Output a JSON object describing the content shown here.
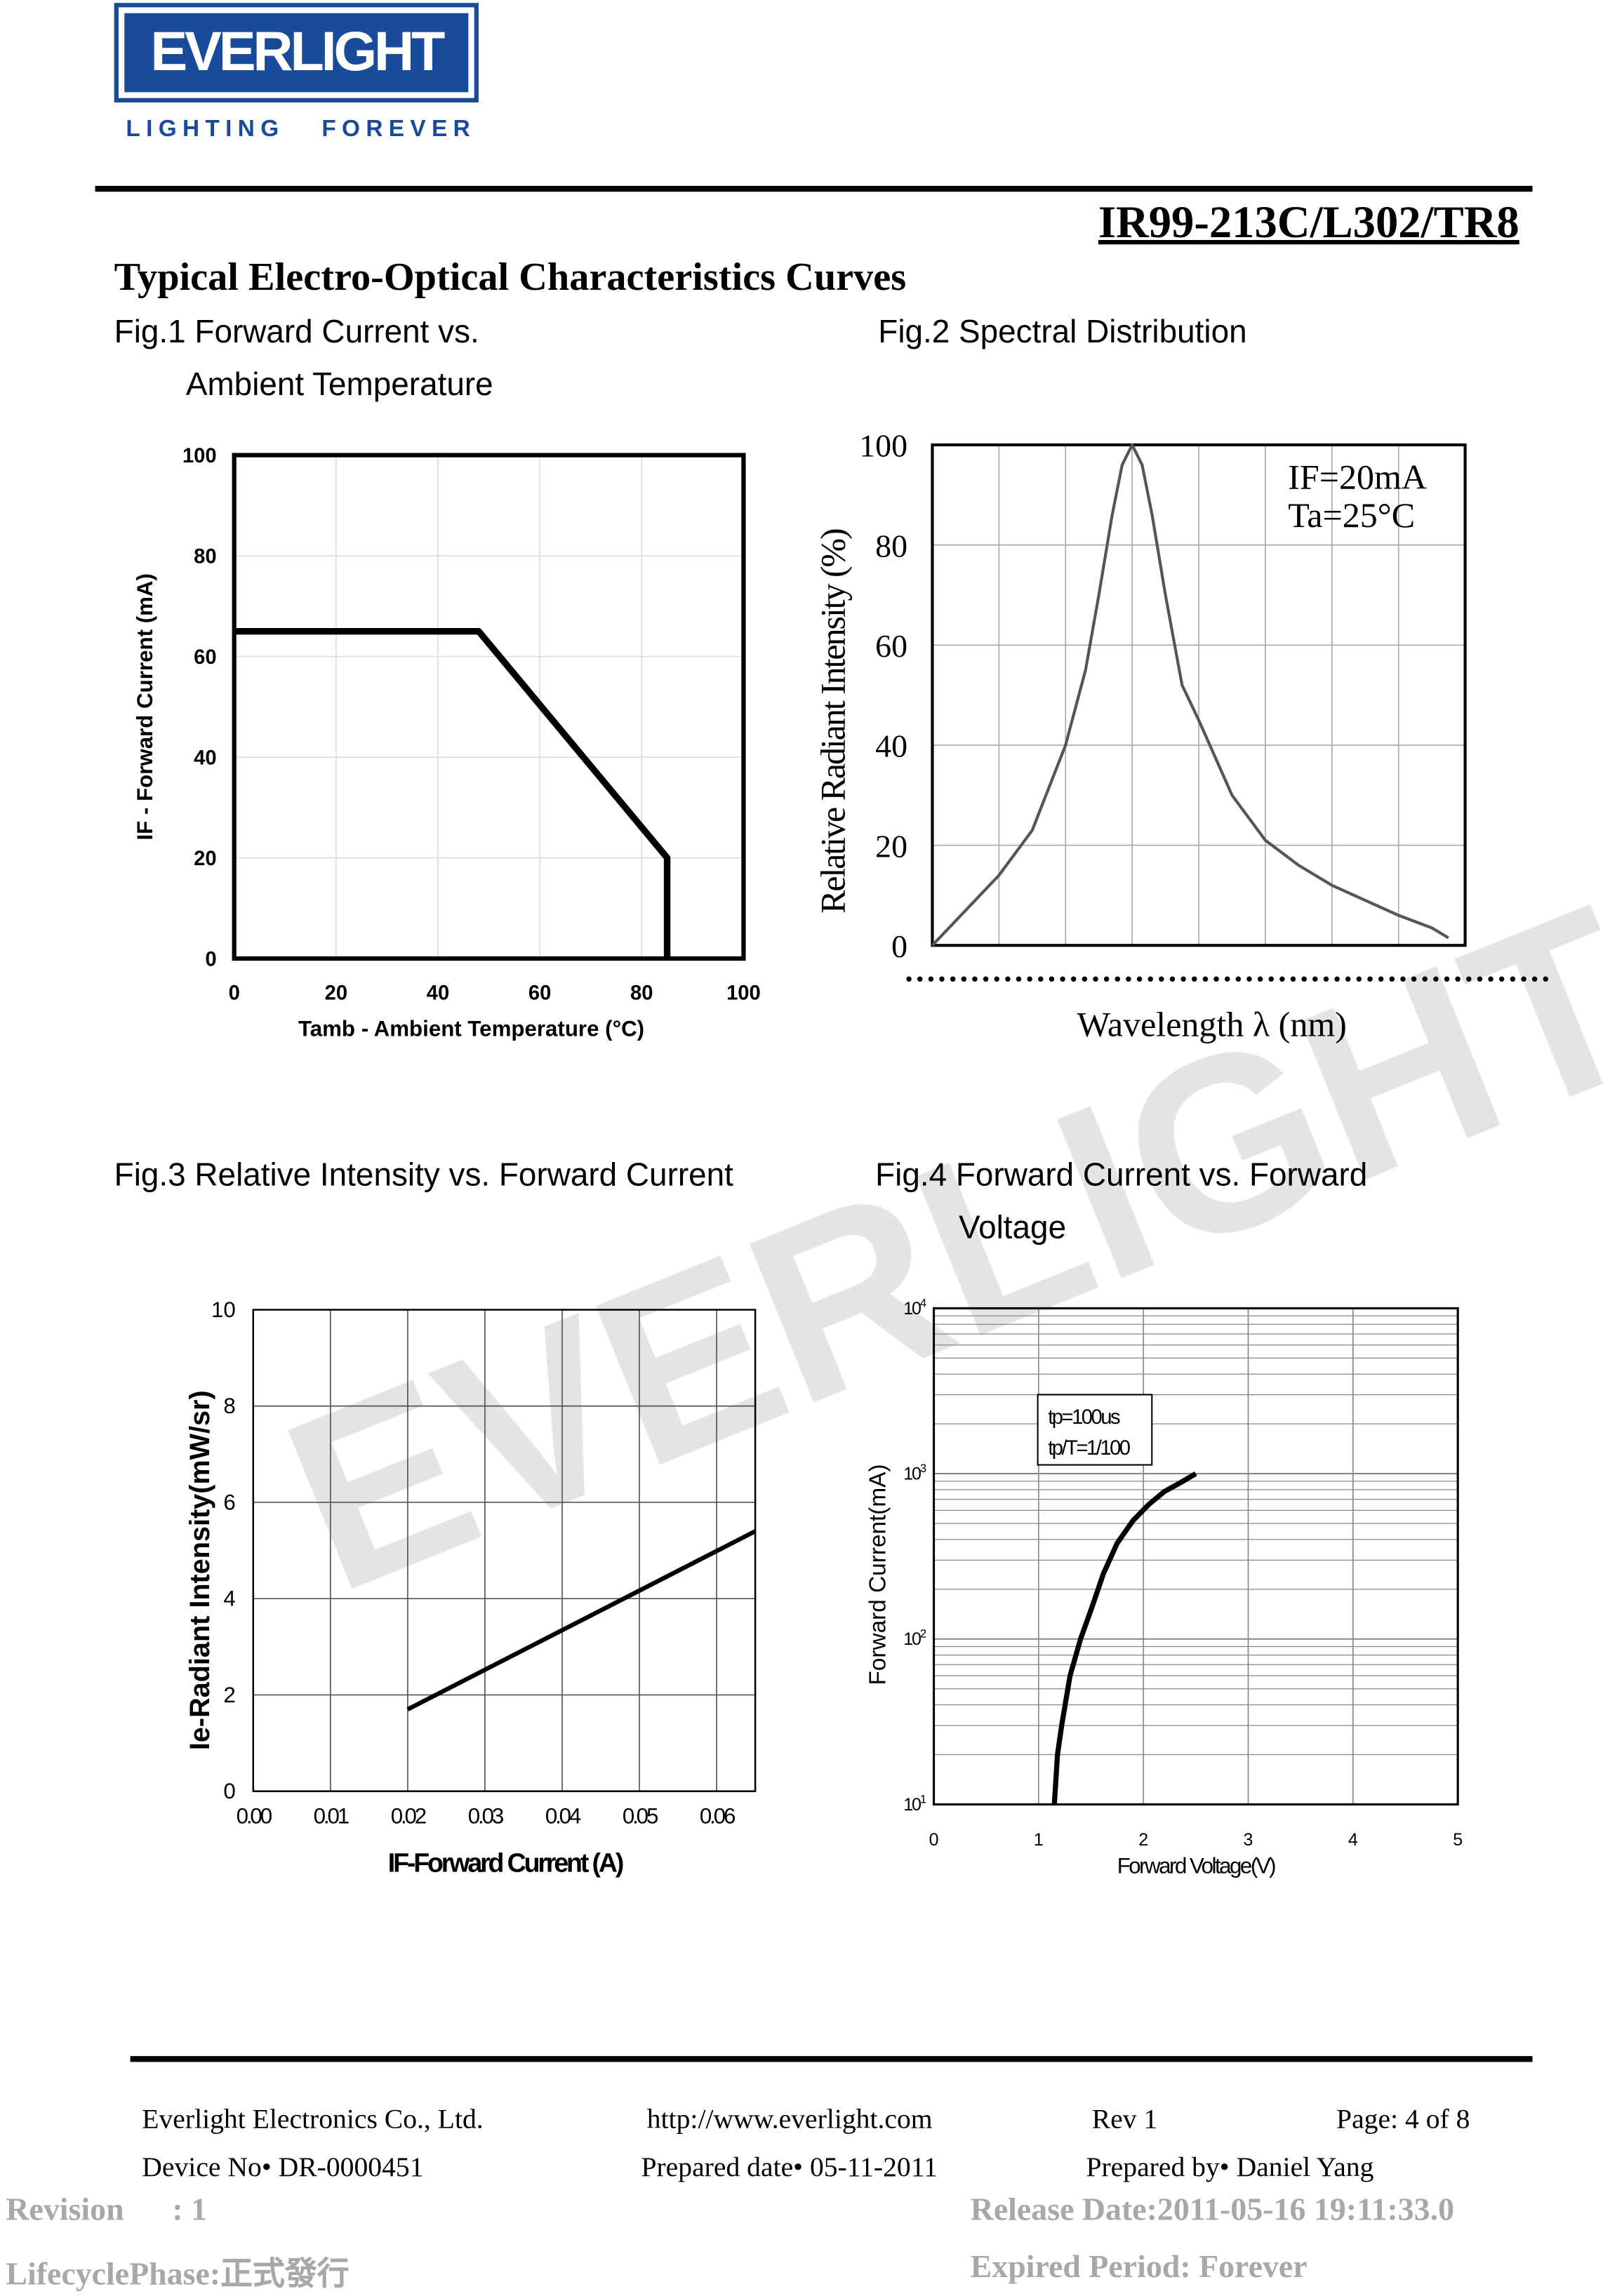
{
  "header": {
    "logo_text": "EVERLIGHT",
    "logo_tagline": "LIGHTING   FOREVER",
    "part_number": "IR99-213C/L302/TR8",
    "section_title": "Typical Electro-Optical Characteristics Curves"
  },
  "watermark": "EVERLIGHT",
  "figures": {
    "fig1_title_line1": "Fig.1 Forward Current vs.",
    "fig1_title_line2": "Ambient Temperature",
    "fig2_title": "Fig.2 Spectral Distribution",
    "fig3_title": "Fig.3 Relative Intensity vs. Forward Current",
    "fig4_title_line1": "Fig.4 Forward Current vs. Forward",
    "fig4_title_line2": "Voltage"
  },
  "chart_data": [
    {
      "id": "fig1",
      "type": "line",
      "title": "Forward Current vs. Ambient Temperature",
      "xlabel": "Tamb - Ambient Temperature (°C)",
      "ylabel": "IF - Forward Current (mA)",
      "xlim": [
        0,
        100
      ],
      "ylim": [
        0,
        100
      ],
      "xticks": [
        "0",
        "20",
        "40",
        "60",
        "80",
        "100"
      ],
      "yticks": [
        "0",
        "20",
        "40",
        "60",
        "80",
        "100"
      ],
      "grid": true,
      "series": [
        {
          "name": "IF max",
          "x": [
            0,
            48,
            85,
            85
          ],
          "y": [
            65,
            65,
            20,
            0
          ]
        }
      ]
    },
    {
      "id": "fig2",
      "type": "line",
      "title": "Spectral Distribution",
      "xlabel": "Wavelength λ (nm)",
      "ylabel": "Relative Radiant Intensity (%)",
      "xlim": [
        0,
        8
      ],
      "ylim": [
        0,
        100
      ],
      "xticks": [],
      "yticks": [
        "0",
        "20",
        "40",
        "60",
        "80",
        "100"
      ],
      "grid": true,
      "annotations": [
        "IF=20mA",
        "Ta=25°C"
      ],
      "series": [
        {
          "name": "spectrum",
          "x": [
            0,
            0.5,
            1,
            1.5,
            2,
            2.3,
            2.5,
            2.7,
            2.85,
            3,
            3.15,
            3.3,
            3.5,
            3.75,
            4,
            4.5,
            5,
            5.5,
            6,
            6.5,
            7,
            7.5,
            7.75
          ],
          "y": [
            0,
            7,
            14,
            23,
            40,
            55,
            70,
            86,
            96,
            100,
            96,
            86,
            70,
            52,
            45,
            30,
            21,
            16,
            12,
            9,
            6,
            3.5,
            1.5
          ]
        }
      ]
    },
    {
      "id": "fig3",
      "type": "line",
      "title": "Relative Intensity vs. Forward Current",
      "xlabel": "IF-Forward Current (A)",
      "ylabel": "Ie-Radiant Intensity(mW/sr)",
      "xlim": [
        0,
        0.065
      ],
      "ylim": [
        0,
        10
      ],
      "xticks": [
        "0.00",
        "0.01",
        "0.02",
        "0.03",
        "0.04",
        "0.05",
        "0.06"
      ],
      "yticks": [
        "0",
        "2",
        "4",
        "6",
        "8",
        "10"
      ],
      "grid": true,
      "series": [
        {
          "name": "Ie",
          "x": [
            0.02,
            0.065
          ],
          "y": [
            1.7,
            5.4
          ]
        }
      ]
    },
    {
      "id": "fig4",
      "type": "line",
      "yscale": "log",
      "title": "Forward Current vs. Forward Voltage",
      "xlabel": "Forward Voltage(V)",
      "ylabel": "Forward Current(mA)",
      "xlim": [
        0,
        5
      ],
      "ylim": [
        10,
        10000
      ],
      "xticks": [
        "0",
        "1",
        "2",
        "3",
        "4",
        "5"
      ],
      "yticks": [
        "10^1",
        "10^2",
        "10^3",
        "10^4"
      ],
      "grid": true,
      "annotations": [
        "tp=100us",
        "tp/T=1/100"
      ],
      "series": [
        {
          "name": "IF",
          "x": [
            1.15,
            1.18,
            1.22,
            1.3,
            1.4,
            1.5,
            1.62,
            1.75,
            1.9,
            2.05,
            2.2,
            2.35,
            2.5
          ],
          "y": [
            10,
            20,
            30,
            60,
            100,
            150,
            250,
            380,
            520,
            650,
            780,
            880,
            1000
          ]
        }
      ]
    }
  ],
  "footer": {
    "company": "Everlight Electronics Co., Ltd.",
    "url": "http://www.everlight.com",
    "rev": "Rev 1",
    "page": "Page: 4 of 8",
    "device_no": "Device No•  DR-0000451",
    "prepared_date": "Prepared date•  05-11-2011",
    "prepared_by": "Prepared by•  Daniel Yang",
    "revision": "Revision      : 1",
    "release_date": "Release Date:2011-05-16 19:11:33.0",
    "lifecycle": "LifecyclePhase:正式發行",
    "expired": "Expired Period: Forever"
  },
  "colors": {
    "brand": "#1a4a9a",
    "watermark": "#e4e4e4",
    "meta_gray": "#a8a8a8"
  }
}
